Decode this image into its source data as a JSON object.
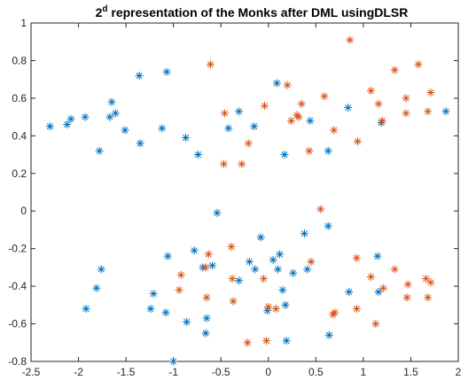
{
  "chart_data": {
    "type": "scatter",
    "title": {
      "prefix": "2",
      "superscript": "d",
      "rest": " representation of the Monks after DML usingDLSR"
    },
    "xlabel": "",
    "ylabel": "",
    "xlim": [
      -2.5,
      2.0
    ],
    "ylim": [
      -0.8,
      1.0
    ],
    "xticks": [
      -2.5,
      -2,
      -1.5,
      -1,
      -0.5,
      0,
      0.5,
      1,
      1.5,
      2
    ],
    "yticks": [
      -0.8,
      -0.6,
      -0.4,
      -0.2,
      0,
      0.2,
      0.4,
      0.6,
      0.8,
      1
    ],
    "grid": false,
    "legend": "none",
    "marker": "asterisk",
    "series": [
      {
        "color": "#0072BD",
        "points": [
          [
            -2.3,
            0.45
          ],
          [
            -2.12,
            0.46
          ],
          [
            -2.08,
            0.49
          ],
          [
            -1.93,
            0.5
          ],
          [
            -1.78,
            0.32
          ],
          [
            -1.67,
            0.5
          ],
          [
            -1.65,
            0.58
          ],
          [
            -1.61,
            0.52
          ],
          [
            -1.51,
            0.43
          ],
          [
            -1.35,
            0.36
          ],
          [
            -1.36,
            0.72
          ],
          [
            -1.12,
            0.44
          ],
          [
            -1.07,
            0.74
          ],
          [
            -0.87,
            0.39
          ],
          [
            -0.74,
            0.3
          ],
          [
            -0.42,
            0.44
          ],
          [
            -0.31,
            0.53
          ],
          [
            -0.15,
            0.45
          ],
          [
            0.09,
            0.68
          ],
          [
            0.17,
            0.3
          ],
          [
            0.44,
            0.48
          ],
          [
            0.63,
            0.32
          ],
          [
            0.84,
            0.55
          ],
          [
            1.19,
            0.47
          ],
          [
            1.87,
            0.53
          ],
          [
            -0.54,
            -0.01
          ],
          [
            -0.08,
            -0.14
          ],
          [
            0.38,
            -0.12
          ],
          [
            0.63,
            -0.08
          ],
          [
            -0.78,
            -0.21
          ],
          [
            -0.59,
            -0.29
          ],
          [
            -0.2,
            -0.27
          ],
          [
            0.05,
            -0.26
          ],
          [
            0.12,
            -0.23
          ],
          [
            -1.06,
            -0.24
          ],
          [
            -1.76,
            -0.31
          ],
          [
            -1.81,
            -0.41
          ],
          [
            -1.21,
            -0.44
          ],
          [
            -0.69,
            -0.3
          ],
          [
            -0.31,
            -0.37
          ],
          [
            -0.14,
            -0.31
          ],
          [
            0.1,
            -0.31
          ],
          [
            0.26,
            -0.33
          ],
          [
            0.41,
            -0.31
          ],
          [
            0.85,
            -0.43
          ],
          [
            1.15,
            -0.24
          ],
          [
            1.16,
            -0.43
          ],
          [
            -1.92,
            -0.52
          ],
          [
            -1.24,
            -0.52
          ],
          [
            -1.08,
            -0.54
          ],
          [
            -0.86,
            -0.59
          ],
          [
            -0.65,
            -0.57
          ],
          [
            -0.66,
            -0.65
          ],
          [
            -0.01,
            -0.53
          ],
          [
            0.15,
            -0.42
          ],
          [
            0.18,
            -0.5
          ],
          [
            0.19,
            -0.69
          ],
          [
            0.64,
            -0.66
          ],
          [
            -1.0,
            -0.8
          ]
        ]
      },
      {
        "color": "#D95319",
        "points": [
          [
            -0.61,
            0.78
          ],
          [
            -0.46,
            0.52
          ],
          [
            -0.47,
            0.25
          ],
          [
            -0.28,
            0.25
          ],
          [
            -0.21,
            0.36
          ],
          [
            -0.04,
            0.56
          ],
          [
            0.2,
            0.67
          ],
          [
            0.24,
            0.48
          ],
          [
            0.3,
            0.51
          ],
          [
            0.32,
            0.5
          ],
          [
            0.35,
            0.57
          ],
          [
            0.43,
            0.32
          ],
          [
            0.59,
            0.61
          ],
          [
            0.69,
            0.43
          ],
          [
            0.86,
            0.91
          ],
          [
            0.94,
            0.37
          ],
          [
            1.08,
            0.64
          ],
          [
            1.16,
            0.57
          ],
          [
            1.2,
            0.48
          ],
          [
            1.33,
            0.75
          ],
          [
            1.45,
            0.52
          ],
          [
            1.45,
            0.6
          ],
          [
            1.58,
            0.78
          ],
          [
            1.68,
            0.53
          ],
          [
            1.71,
            0.63
          ],
          [
            0.55,
            0.01
          ],
          [
            -0.39,
            -0.19
          ],
          [
            -0.63,
            -0.23
          ],
          [
            -0.66,
            -0.3
          ],
          [
            -0.92,
            -0.34
          ],
          [
            -0.94,
            -0.42
          ],
          [
            -0.38,
            -0.36
          ],
          [
            -0.05,
            -0.36
          ],
          [
            0.45,
            -0.27
          ],
          [
            0.93,
            -0.25
          ],
          [
            1.08,
            -0.35
          ],
          [
            1.33,
            -0.31
          ],
          [
            1.21,
            -0.41
          ],
          [
            1.47,
            -0.39
          ],
          [
            1.66,
            -0.36
          ],
          [
            1.71,
            -0.38
          ],
          [
            -0.65,
            -0.46
          ],
          [
            -0.37,
            -0.48
          ],
          [
            0.0,
            -0.51
          ],
          [
            0.08,
            -0.52
          ],
          [
            0.68,
            -0.55
          ],
          [
            0.7,
            -0.54
          ],
          [
            0.93,
            -0.52
          ],
          [
            1.13,
            -0.6
          ],
          [
            1.46,
            -0.46
          ],
          [
            1.68,
            -0.46
          ],
          [
            -0.22,
            -0.7
          ],
          [
            -0.02,
            -0.69
          ]
        ]
      }
    ]
  }
}
